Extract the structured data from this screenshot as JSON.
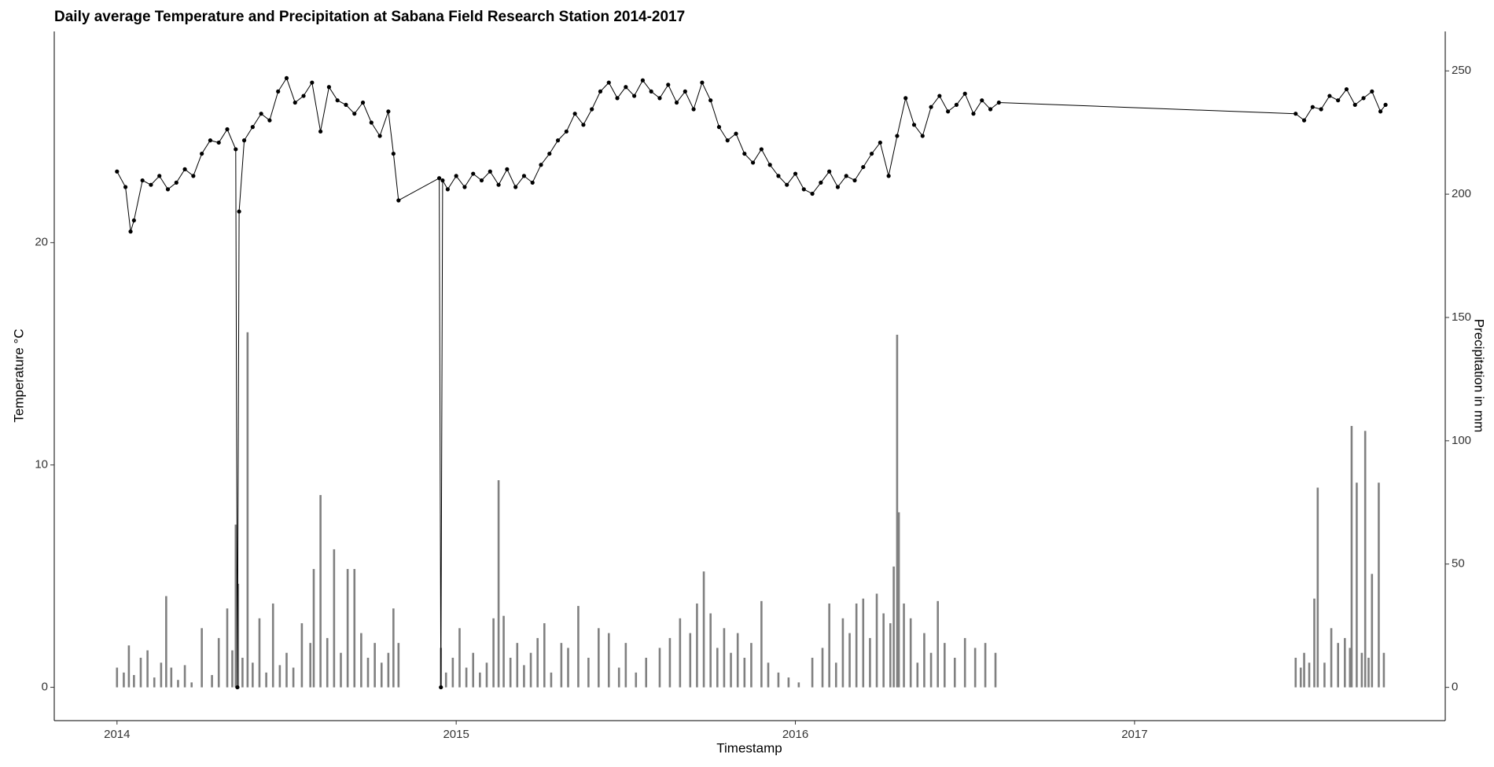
{
  "chart_data": {
    "type": "line-bar",
    "title": "Daily average Temperature and Precipitation at Sabana Field Research Station 2014-2017",
    "x_label": "Timestamp",
    "y_label": "Temperature °C",
    "y2_label": "Precipitation in mm",
    "xlim": [
      2013.815,
      2017.916
    ],
    "xticks": [
      2014,
      2015,
      2016,
      2017
    ],
    "ylim": [
      -1.5,
      29.5
    ],
    "yticks": [
      0,
      10,
      20
    ],
    "y2lim": [
      -13.5,
      266
    ],
    "y2ticks": [
      0,
      50,
      100,
      150,
      200,
      250
    ],
    "series": [
      {
        "type": "line",
        "color": "#000000",
        "x": [
          2014.0,
          2014.025,
          2014.04,
          2014.05,
          2014.075,
          2014.1,
          2014.125,
          2014.15,
          2014.175,
          2014.2,
          2014.225,
          2014.25,
          2014.275,
          2014.3,
          2014.325,
          2014.35,
          2014.355,
          2014.36,
          2014.375,
          2014.4,
          2014.425,
          2014.45,
          2014.475,
          2014.5,
          2014.525,
          2014.55,
          2014.575,
          2014.6,
          2014.625,
          2014.65,
          2014.675,
          2014.7,
          2014.725,
          2014.75,
          2014.775,
          2014.8,
          2014.815,
          2014.83,
          2014.95,
          2014.955,
          2014.96,
          2014.975,
          2015.0,
          2015.025,
          2015.05,
          2015.075,
          2015.1,
          2015.125,
          2015.15,
          2015.175,
          2015.2,
          2015.225,
          2015.25,
          2015.275,
          2015.3,
          2015.325,
          2015.35,
          2015.375,
          2015.4,
          2015.425,
          2015.45,
          2015.475,
          2015.5,
          2015.525,
          2015.55,
          2015.575,
          2015.6,
          2015.625,
          2015.65,
          2015.675,
          2015.7,
          2015.725,
          2015.75,
          2015.775,
          2015.8,
          2015.825,
          2015.85,
          2015.875,
          2015.9,
          2015.925,
          2015.95,
          2015.975,
          2016.0,
          2016.025,
          2016.05,
          2016.075,
          2016.1,
          2016.125,
          2016.15,
          2016.175,
          2016.2,
          2016.225,
          2016.25,
          2016.275,
          2016.3,
          2016.325,
          2016.35,
          2016.375,
          2016.4,
          2016.425,
          2016.45,
          2016.475,
          2016.5,
          2016.525,
          2016.55,
          2016.575,
          2016.6,
          2017.475,
          2017.5,
          2017.525,
          2017.55,
          2017.575,
          2017.6,
          2017.625,
          2017.65,
          2017.675,
          2017.7,
          2017.725,
          2017.74
        ],
        "values": [
          23.2,
          22.5,
          20.5,
          21.0,
          22.8,
          22.6,
          23.0,
          22.4,
          22.7,
          23.3,
          23.0,
          24.0,
          24.6,
          24.5,
          25.1,
          24.2,
          0,
          21.4,
          24.6,
          25.2,
          25.8,
          25.5,
          26.8,
          27.4,
          26.3,
          26.6,
          27.2,
          25.0,
          27.0,
          26.4,
          26.2,
          25.8,
          26.3,
          25.4,
          24.8,
          25.9,
          24.0,
          21.9,
          22.9,
          0,
          22.8,
          22.4,
          23.0,
          22.5,
          23.1,
          22.8,
          23.2,
          22.6,
          23.3,
          22.5,
          23.0,
          22.7,
          23.5,
          24.0,
          24.6,
          25.0,
          25.8,
          25.3,
          26.0,
          26.8,
          27.2,
          26.5,
          27.0,
          26.6,
          27.3,
          26.8,
          26.5,
          27.1,
          26.3,
          26.8,
          26.0,
          27.2,
          26.4,
          25.2,
          24.6,
          24.9,
          24.0,
          23.6,
          24.2,
          23.5,
          23.0,
          22.6,
          23.1,
          22.4,
          22.2,
          22.7,
          23.2,
          22.5,
          23.0,
          22.8,
          23.4,
          24.0,
          24.5,
          23.0,
          24.8,
          26.5,
          25.3,
          24.8,
          26.1,
          26.6,
          25.9,
          26.2,
          26.7,
          25.8,
          26.4,
          26.0,
          26.3,
          25.8,
          25.5,
          26.1,
          26.0,
          26.6,
          26.4,
          26.9,
          26.2,
          26.5,
          26.8,
          25.9,
          26.2
        ]
      },
      {
        "type": "bar",
        "axis": "y2",
        "color": "#808080",
        "x": [
          2014.0,
          2014.02,
          2014.035,
          2014.05,
          2014.07,
          2014.09,
          2014.11,
          2014.13,
          2014.145,
          2014.16,
          2014.18,
          2014.2,
          2014.22,
          2014.25,
          2014.28,
          2014.3,
          2014.325,
          2014.34,
          2014.35,
          2014.357,
          2014.37,
          2014.385,
          2014.4,
          2014.42,
          2014.44,
          2014.46,
          2014.48,
          2014.5,
          2014.52,
          2014.545,
          2014.57,
          2014.58,
          2014.6,
          2014.62,
          2014.64,
          2014.66,
          2014.68,
          2014.7,
          2014.72,
          2014.74,
          2014.76,
          2014.78,
          2014.8,
          2014.815,
          2014.83,
          2014.955,
          2014.97,
          2014.99,
          2015.01,
          2015.03,
          2015.05,
          2015.07,
          2015.09,
          2015.11,
          2015.125,
          2015.14,
          2015.16,
          2015.18,
          2015.2,
          2015.22,
          2015.24,
          2015.26,
          2015.28,
          2015.31,
          2015.33,
          2015.36,
          2015.39,
          2015.42,
          2015.45,
          2015.48,
          2015.5,
          2015.53,
          2015.56,
          2015.6,
          2015.63,
          2015.66,
          2015.69,
          2015.71,
          2015.73,
          2015.75,
          2015.77,
          2015.79,
          2015.81,
          2015.83,
          2015.85,
          2015.87,
          2015.9,
          2015.92,
          2015.95,
          2015.98,
          2016.01,
          2016.05,
          2016.08,
          2016.1,
          2016.12,
          2016.14,
          2016.16,
          2016.18,
          2016.2,
          2016.22,
          2016.24,
          2016.26,
          2016.28,
          2016.29,
          2016.3,
          2016.305,
          2016.32,
          2016.34,
          2016.36,
          2016.38,
          2016.4,
          2016.42,
          2016.44,
          2016.47,
          2016.5,
          2016.53,
          2016.56,
          2016.59,
          2017.475,
          2017.49,
          2017.5,
          2017.515,
          2017.53,
          2017.54,
          2017.56,
          2017.58,
          2017.6,
          2017.62,
          2017.635,
          2017.64,
          2017.655,
          2017.67,
          2017.68,
          2017.69,
          2017.7,
          2017.72,
          2017.735
        ],
        "values": [
          8,
          6,
          17,
          5,
          12,
          15,
          4,
          10,
          37,
          8,
          3,
          9,
          2,
          24,
          5,
          20,
          32,
          15,
          66,
          42,
          12,
          144,
          10,
          28,
          6,
          34,
          9,
          14,
          8,
          26,
          18,
          48,
          78,
          20,
          56,
          14,
          48,
          48,
          22,
          12,
          18,
          10,
          14,
          32,
          18,
          16,
          6,
          12,
          24,
          8,
          14,
          6,
          10,
          28,
          84,
          29,
          12,
          18,
          9,
          14,
          20,
          26,
          6,
          18,
          16,
          33,
          12,
          24,
          22,
          8,
          18,
          6,
          12,
          16,
          20,
          28,
          22,
          34,
          47,
          30,
          16,
          24,
          14,
          22,
          12,
          18,
          35,
          10,
          6,
          4,
          2,
          12,
          16,
          34,
          10,
          28,
          22,
          34,
          36,
          20,
          38,
          30,
          26,
          49,
          143,
          71,
          34,
          28,
          10,
          22,
          14,
          35,
          18,
          12,
          20,
          16,
          18,
          14,
          12,
          8,
          14,
          10,
          36,
          81,
          10,
          24,
          18,
          20,
          16,
          106,
          83,
          14,
          104,
          12,
          46,
          83,
          14
        ]
      }
    ]
  }
}
